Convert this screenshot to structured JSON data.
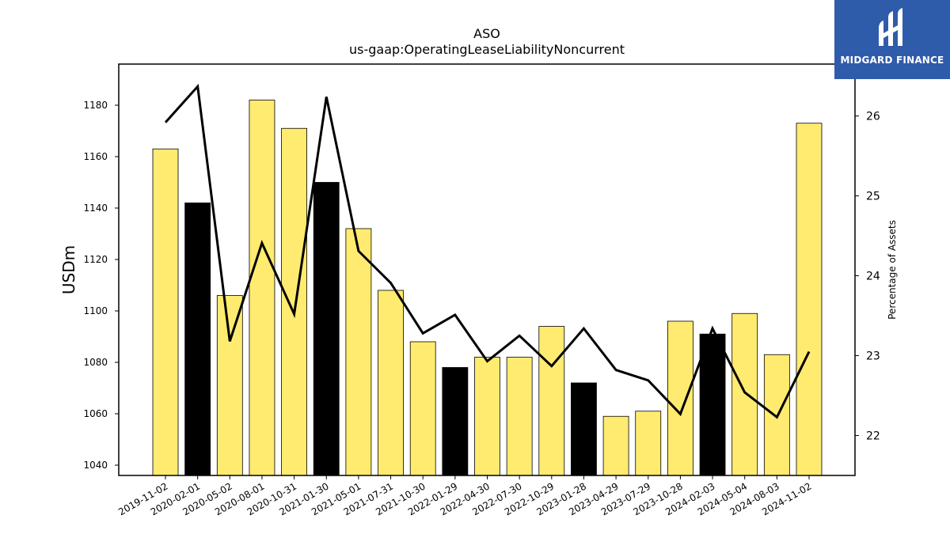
{
  "chart_data": {
    "type": "bar",
    "title": "ASO",
    "subtitle": "us-gaap:OperatingLeaseLiabilityNoncurrent",
    "ylabel": "USDm",
    "y2label": "Percentage of Assets",
    "ylim": [
      1036,
      1196
    ],
    "y2lim": [
      21.5,
      26.65
    ],
    "yticks": [
      1040,
      1060,
      1080,
      1100,
      1120,
      1140,
      1160,
      1180
    ],
    "y2ticks": [
      22,
      23,
      24,
      25,
      26
    ],
    "categories": [
      "2019-11-02",
      "2020-02-01",
      "2020-05-02",
      "2020-08-01",
      "2020-10-31",
      "2021-01-30",
      "2021-05-01",
      "2021-07-31",
      "2021-10-30",
      "2022-01-29",
      "2022-04-30",
      "2022-07-30",
      "2022-10-29",
      "2023-01-28",
      "2023-04-29",
      "2023-07-29",
      "2023-10-28",
      "2024-02-03",
      "2024-05-04",
      "2024-08-03",
      "2024-11-02"
    ],
    "series": [
      {
        "type": "bar",
        "values": [
          1163,
          1142,
          1106,
          1182,
          1171,
          1150,
          1132,
          1108,
          1088,
          1078,
          1082,
          1082,
          1094,
          1072,
          1059,
          1061,
          1096,
          1091,
          1099,
          1083,
          1173
        ],
        "colors": [
          "#ffeb70",
          "#000000",
          "#ffeb70",
          "#ffeb70",
          "#ffeb70",
          "#000000",
          "#ffeb70",
          "#ffeb70",
          "#ffeb70",
          "#000000",
          "#ffeb70",
          "#ffeb70",
          "#ffeb70",
          "#000000",
          "#ffeb70",
          "#ffeb70",
          "#ffeb70",
          "#000000",
          "#ffeb70",
          "#ffeb70",
          "#ffeb70"
        ]
      },
      {
        "type": "line",
        "axis": "right",
        "values": [
          25.92,
          26.37,
          23.18,
          24.41,
          23.52,
          26.24,
          24.31,
          23.91,
          23.28,
          23.51,
          22.93,
          23.25,
          22.87,
          23.34,
          22.82,
          22.69,
          22.27,
          23.34,
          22.54,
          22.23,
          23.05
        ],
        "color": "#000000"
      }
    ],
    "grid": false,
    "legend": "none"
  },
  "logo": {
    "text": "MIDGARD FINANCE",
    "color": "#2f5bab"
  }
}
